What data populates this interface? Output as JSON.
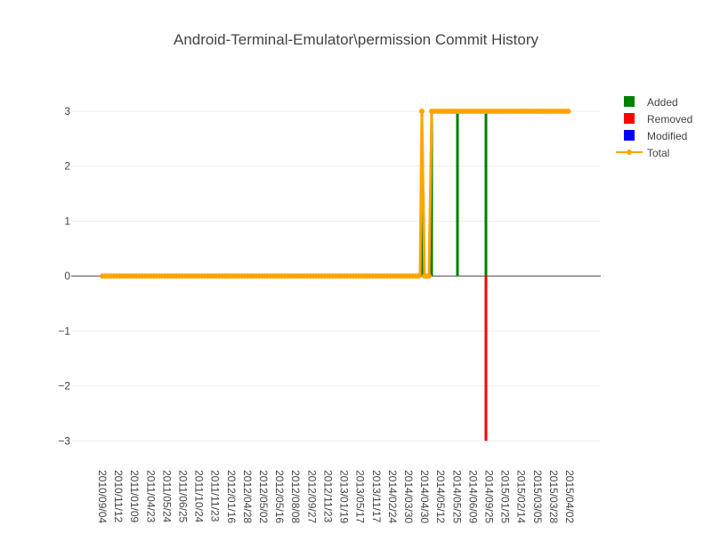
{
  "chart_data": {
    "type": "bar",
    "title": "Android-Terminal-Emulator\\permission Commit History",
    "ylim": [
      -3.4,
      3.6
    ],
    "y_ticks": [
      3,
      2,
      1,
      0,
      -1,
      -2,
      -3
    ],
    "y_tick_labels": [
      "3",
      "2",
      "1",
      "0",
      "−1",
      "−2",
      "−3"
    ],
    "x_tick_labels": [
      "2010/09/04",
      "2010/11/12",
      "2011/01/09",
      "2011/04/23",
      "2011/05/24",
      "2011/06/25",
      "2011/10/24",
      "2011/11/23",
      "2012/01/16",
      "2012/04/28",
      "2012/05/02",
      "2012/05/16",
      "2012/08/08",
      "2012/09/27",
      "2012/11/23",
      "2013/01/19",
      "2013/05/17",
      "2013/11/17",
      "2014/02/24",
      "2014/03/30",
      "2014/04/30",
      "2014/05/12",
      "2014/05/25",
      "2014/06/09",
      "2014/09/25",
      "2015/01/25",
      "2015/02/14",
      "2015/03/05",
      "2015/03/28",
      "2015/04/02"
    ],
    "grid": true,
    "legend_position": "top-right",
    "colors": {
      "added": "#008000",
      "removed": "#ff0000",
      "modified": "#0000ff",
      "total": "#ffa500"
    },
    "series": [
      {
        "name": "Added",
        "kind": "bar",
        "points": [
          {
            "x": "2014/04/30",
            "value": 3
          },
          {
            "x": "2014/05/12",
            "value": 3
          },
          {
            "x": "2014/05/25",
            "value": 3
          },
          {
            "x": "2014/09/25",
            "value": 3
          }
        ]
      },
      {
        "name": "Removed",
        "kind": "bar",
        "points": [
          {
            "x": "2014/09/25",
            "value": -3
          }
        ]
      },
      {
        "name": "Modified",
        "kind": "bar",
        "points": []
      },
      {
        "name": "Total",
        "kind": "line",
        "segments": [
          {
            "from": "2010/09/04",
            "to": "2014/04/30",
            "value": 0
          },
          {
            "at": "2014/04/30",
            "value": 3
          },
          {
            "from": "2014/04/30",
            "to": "2014/05/12",
            "value": 0
          },
          {
            "from": "2014/05/12",
            "to": "2015/04/02",
            "value": 3
          }
        ]
      }
    ]
  }
}
